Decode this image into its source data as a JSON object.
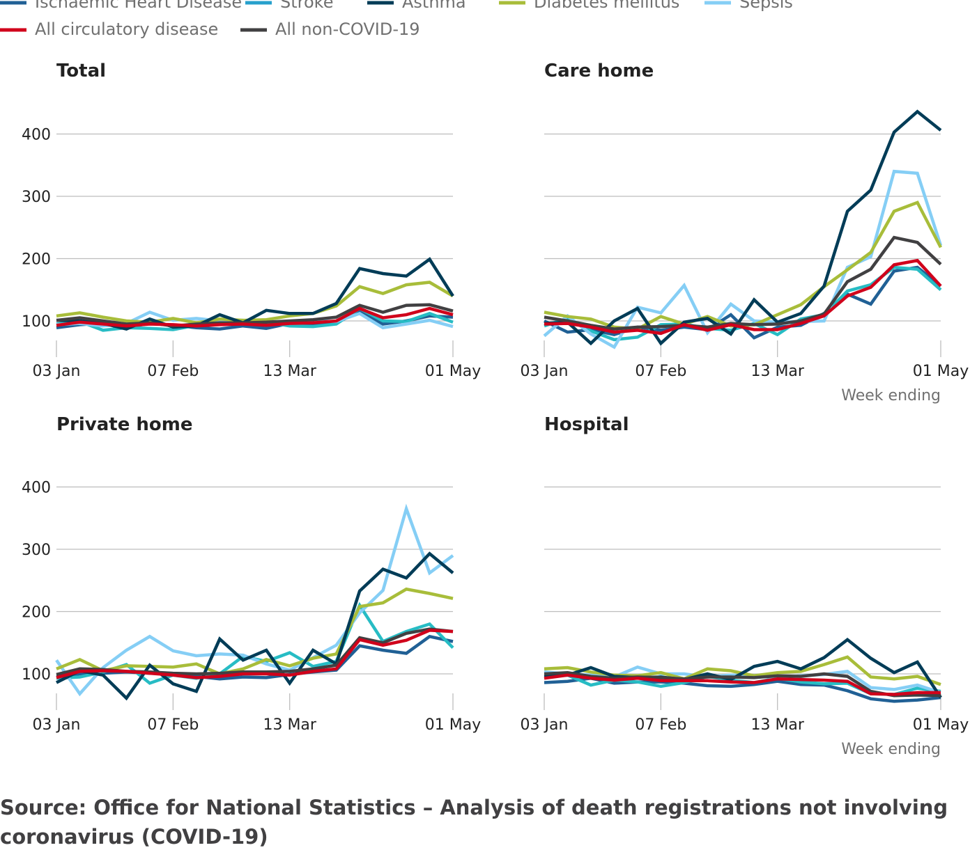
{
  "legend": [
    {
      "name": "Ischaemic Heart Disease",
      "color": "#206095"
    },
    {
      "name": "Stroke",
      "color": "#27a0cc"
    },
    {
      "name": "Asthma",
      "color": "#003c57"
    },
    {
      "name": "Diabetes mellitus",
      "color": "#a8bd3a"
    },
    {
      "name": "Sepsis",
      "color": "#85cef5"
    },
    {
      "name": "All circulatory disease",
      "color": "#d0021b"
    },
    {
      "name": "All non-COVID-19",
      "color": "#414042"
    }
  ],
  "series_colors": {
    "Ischaemic Heart Disease": "#206095",
    "Stroke": "#27bcc4",
    "Asthma": "#003c57",
    "Diabetes mellitus": "#a8bd3a",
    "Sepsis": "#85cef5",
    "All circulatory disease": "#d0021b",
    "All non-COVID-19": "#414042"
  },
  "source": {
    "line1": "Source: Office for National Statistics – Analysis of death registrations not involving",
    "line2": "coronavirus (COVID-19)"
  },
  "chart_data": [
    {
      "type": "line",
      "title": "Total",
      "x": [
        "03 Jan",
        "10 Jan",
        "17 Jan",
        "24 Jan",
        "31 Jan",
        "07 Feb",
        "14 Feb",
        "21 Feb",
        "28 Feb",
        "06 Mar",
        "13 Mar",
        "20 Mar",
        "27 Mar",
        "03 Apr",
        "10 Apr",
        "17 Apr",
        "24 Apr",
        "01 May"
      ],
      "x_tick_labels": [
        "03 Jan",
        "07 Feb",
        "13 Mar",
        "01 May"
      ],
      "xlabel": "",
      "y_ticks": [
        100,
        200,
        300,
        400
      ],
      "ylim": [
        50,
        440
      ],
      "grid": true,
      "series": [
        {
          "name": "Ischaemic Heart Disease",
          "values": [
            89,
            94,
            96,
            90,
            96,
            93,
            89,
            87,
            92,
            88,
            96,
            94,
            97,
            115,
            95,
            100,
            108,
            106
          ]
        },
        {
          "name": "Stroke",
          "values": [
            95,
            99,
            85,
            89,
            88,
            86,
            93,
            101,
            101,
            98,
            92,
            91,
            95,
            120,
            100,
            99,
            112,
            98
          ]
        },
        {
          "name": "Asthma",
          "values": [
            101,
            100,
            96,
            87,
            103,
            90,
            92,
            110,
            97,
            117,
            112,
            112,
            128,
            184,
            176,
            172,
            199,
            140
          ]
        },
        {
          "name": "Diabetes mellitus",
          "values": [
            108,
            113,
            106,
            100,
            98,
            104,
            97,
            103,
            101,
            102,
            108,
            112,
            124,
            155,
            144,
            158,
            162,
            140
          ]
        },
        {
          "name": "Sepsis",
          "values": [
            94,
            96,
            92,
            96,
            114,
            101,
            104,
            100,
            99,
            95,
            96,
            100,
            99,
            112,
            89,
            95,
            101,
            91
          ]
        },
        {
          "name": "All circulatory disease",
          "values": [
            93,
            98,
            95,
            92,
            95,
            94,
            92,
            94,
            95,
            93,
            96,
            97,
            100,
            120,
            105,
            110,
            120,
            110
          ]
        },
        {
          "name": "All non-COVID-19",
          "values": [
            101,
            105,
            100,
            95,
            97,
            92,
            95,
            97,
            97,
            98,
            100,
            102,
            106,
            125,
            114,
            125,
            126,
            116
          ]
        }
      ]
    },
    {
      "type": "line",
      "title": "Care home",
      "x": [
        "03 Jan",
        "10 Jan",
        "17 Jan",
        "24 Jan",
        "31 Jan",
        "07 Feb",
        "14 Feb",
        "21 Feb",
        "28 Feb",
        "06 Mar",
        "13 Mar",
        "20 Mar",
        "27 Mar",
        "03 Apr",
        "10 Apr",
        "17 Apr",
        "24 Apr",
        "01 May"
      ],
      "x_tick_labels": [
        "03 Jan",
        "07 Feb",
        "13 Mar",
        "01 May"
      ],
      "xlabel": "Week ending",
      "y_ticks": [
        100,
        200,
        300,
        400
      ],
      "ylim": [
        50,
        440
      ],
      "grid": true,
      "series": [
        {
          "name": "Ischaemic Heart Disease",
          "values": [
            100,
            82,
            86,
            78,
            90,
            85,
            90,
            86,
            110,
            73,
            90,
            93,
            112,
            143,
            127,
            180,
            186,
            156
          ]
        },
        {
          "name": "Stroke",
          "values": [
            92,
            104,
            84,
            70,
            74,
            94,
            95,
            88,
            85,
            96,
            78,
            103,
            110,
            148,
            158,
            186,
            183,
            150
          ]
        },
        {
          "name": "Asthma",
          "values": [
            96,
            98,
            64,
            100,
            120,
            64,
            98,
            104,
            79,
            134,
            98,
            112,
            156,
            276,
            310,
            403,
            436,
            406
          ]
        },
        {
          "name": "Diabetes mellitus",
          "values": [
            114,
            107,
            103,
            90,
            87,
            107,
            95,
            107,
            92,
            94,
            110,
            126,
            155,
            182,
            210,
            276,
            290,
            218
          ]
        },
        {
          "name": "Sepsis",
          "values": [
            76,
            108,
            79,
            58,
            122,
            113,
            157,
            81,
            127,
            100,
            98,
            99,
            100,
            186,
            203,
            340,
            337,
            221
          ]
        },
        {
          "name": "All circulatory disease",
          "values": [
            95,
            96,
            90,
            82,
            85,
            80,
            94,
            85,
            94,
            86,
            86,
            96,
            108,
            140,
            154,
            190,
            197,
            156
          ]
        },
        {
          "name": "All non-COVID-19",
          "values": [
            106,
            100,
            93,
            87,
            90,
            91,
            93,
            90,
            96,
            94,
            95,
            100,
            111,
            163,
            183,
            234,
            226,
            191
          ]
        }
      ]
    },
    {
      "type": "line",
      "title": "Private home",
      "x": [
        "03 Jan",
        "10 Jan",
        "17 Jan",
        "24 Jan",
        "31 Jan",
        "07 Feb",
        "14 Feb",
        "21 Feb",
        "28 Feb",
        "06 Mar",
        "13 Mar",
        "20 Mar",
        "27 Mar",
        "03 Apr",
        "10 Apr",
        "17 Apr",
        "24 Apr",
        "01 May"
      ],
      "x_tick_labels": [
        "03 Jan",
        "07 Feb",
        "13 Mar",
        "01 May"
      ],
      "xlabel": "",
      "y_ticks": [
        100,
        200,
        300,
        400
      ],
      "ylim": [
        50,
        440
      ],
      "grid": true,
      "series": [
        {
          "name": "Ischaemic Heart Disease",
          "values": [
            96,
            100,
            101,
            103,
            101,
            100,
            96,
            92,
            95,
            94,
            99,
            103,
            106,
            145,
            138,
            133,
            160,
            152
          ]
        },
        {
          "name": "Stroke",
          "values": [
            93,
            95,
            103,
            115,
            85,
            98,
            93,
            100,
            128,
            120,
            134,
            112,
            120,
            210,
            152,
            168,
            180,
            142
          ]
        },
        {
          "name": "Asthma",
          "values": [
            86,
            105,
            98,
            61,
            114,
            84,
            72,
            156,
            122,
            138,
            85,
            138,
            116,
            233,
            268,
            254,
            293,
            262
          ]
        },
        {
          "name": "Diabetes mellitus",
          "values": [
            108,
            123,
            105,
            113,
            112,
            111,
            116,
            100,
            108,
            123,
            113,
            125,
            132,
            208,
            214,
            236,
            229,
            221
          ]
        },
        {
          "name": "Sepsis",
          "values": [
            122,
            68,
            110,
            138,
            160,
            137,
            129,
            132,
            130,
            116,
            106,
            126,
            146,
            198,
            234,
            365,
            262,
            290
          ]
        },
        {
          "name": "All circulatory disease",
          "values": [
            94,
            104,
            105,
            104,
            101,
            98,
            94,
            96,
            100,
            100,
            98,
            104,
            108,
            155,
            146,
            154,
            170,
            168
          ]
        },
        {
          "name": "All non-COVID-19",
          "values": [
            99,
            108,
            107,
            104,
            103,
            101,
            100,
            101,
            103,
            103,
            104,
            108,
            114,
            158,
            150,
            165,
            172,
            168
          ]
        }
      ]
    },
    {
      "type": "line",
      "title": "Hospital",
      "x": [
        "03 Jan",
        "10 Jan",
        "17 Jan",
        "24 Jan",
        "31 Jan",
        "07 Feb",
        "14 Feb",
        "21 Feb",
        "28 Feb",
        "06 Mar",
        "13 Mar",
        "20 Mar",
        "27 Mar",
        "03 Apr",
        "10 Apr",
        "17 Apr",
        "24 Apr",
        "01 May"
      ],
      "x_tick_labels": [
        "03 Jan",
        "07 Feb",
        "13 Mar",
        "01 May"
      ],
      "xlabel": "Week ending",
      "y_ticks": [
        100,
        200,
        300,
        400
      ],
      "ylim": [
        50,
        440
      ],
      "grid": true,
      "series": [
        {
          "name": "Ischaemic Heart Disease",
          "values": [
            86,
            88,
            93,
            85,
            87,
            87,
            85,
            81,
            80,
            83,
            88,
            83,
            82,
            73,
            60,
            56,
            58,
            62
          ]
        },
        {
          "name": "Stroke",
          "values": [
            96,
            98,
            82,
            90,
            87,
            80,
            86,
            96,
            90,
            86,
            93,
            87,
            84,
            85,
            68,
            67,
            77,
            72
          ]
        },
        {
          "name": "Asthma",
          "values": [
            96,
            98,
            110,
            96,
            94,
            95,
            91,
            100,
            91,
            112,
            120,
            108,
            126,
            155,
            125,
            102,
            119,
            62
          ]
        },
        {
          "name": "Diabetes mellitus",
          "values": [
            108,
            110,
            103,
            98,
            97,
            102,
            92,
            108,
            105,
            97,
            102,
            104,
            115,
            127,
            95,
            92,
            96,
            83
          ]
        },
        {
          "name": "Sepsis",
          "values": [
            103,
            100,
            98,
            95,
            111,
            100,
            100,
            95,
            98,
            97,
            94,
            97,
            99,
            104,
            78,
            75,
            82,
            70
          ]
        },
        {
          "name": "All circulatory disease",
          "values": [
            93,
            98,
            93,
            90,
            93,
            89,
            89,
            89,
            87,
            86,
            92,
            91,
            90,
            88,
            68,
            67,
            70,
            70
          ]
        },
        {
          "name": "All non-COVID-19",
          "values": [
            100,
            102,
            96,
            93,
            95,
            94,
            92,
            95,
            95,
            94,
            97,
            96,
            100,
            96,
            72,
            65,
            66,
            65
          ]
        }
      ]
    }
  ]
}
